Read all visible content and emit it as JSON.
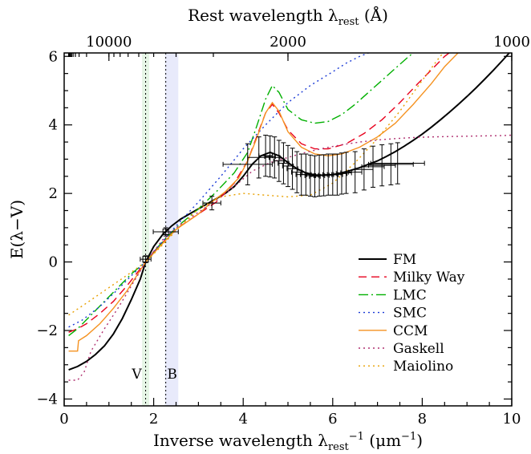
{
  "chart_data": {
    "type": "line",
    "xlabel": "Inverse wavelength λrest⁻¹ (μm⁻¹)",
    "xlabel_parts": {
      "main": "Inverse wavelength λ",
      "sub": "rest",
      "sup": "−1",
      "unit": " (μm",
      "unit_sup": "−1",
      "close": ")"
    },
    "ylabel": "E(λ−V)",
    "top_xlabel": "Rest wavelength λrest (Å)",
    "top_xlabel_parts": {
      "main": "Rest wavelength λ",
      "sub": "rest",
      "unit": " (Å)"
    },
    "xlim": [
      0,
      10
    ],
    "ylim": [
      -4.2,
      6.1
    ],
    "xticks": [
      0,
      2,
      4,
      6,
      8,
      10
    ],
    "yticks": [
      -4,
      -2,
      0,
      2,
      4,
      6
    ],
    "top_ticks": [
      {
        "label": "10000",
        "inv_x": 1.0
      },
      {
        "label": "2000",
        "inv_x": 5.0
      },
      {
        "label": "1000",
        "inv_x": 10.0
      }
    ],
    "bands": [
      {
        "label": "V",
        "x": 1.82,
        "range": [
          1.74,
          1.9
        ],
        "color": "#e6f6e6"
      },
      {
        "label": "B",
        "x": 2.27,
        "range": [
          2.25,
          2.55
        ],
        "color": "#e8eafb"
      }
    ],
    "legend_position": "bottom-right",
    "series": [
      {
        "name": "FM",
        "color": "#000000",
        "dash": "solid",
        "x": [
          0.1,
          0.3,
          0.5,
          0.7,
          0.9,
          1.1,
          1.3,
          1.5,
          1.7,
          1.82,
          2.0,
          2.2,
          2.4,
          2.6,
          2.8,
          3.0,
          3.2,
          3.4,
          3.6,
          3.8,
          4.0,
          4.2,
          4.4,
          4.6,
          4.8,
          5.0,
          5.2,
          5.4,
          5.6,
          5.8,
          6.0,
          6.2,
          6.4,
          6.6,
          6.8,
          7.0,
          7.2,
          7.4,
          7.6,
          7.8,
          8.0,
          8.2,
          8.4,
          8.6,
          8.8,
          9.0,
          9.2,
          9.4,
          9.6,
          9.8,
          10.0
        ],
        "y": [
          -3.15,
          -3.05,
          -2.9,
          -2.7,
          -2.45,
          -2.1,
          -1.65,
          -1.1,
          -0.5,
          0.0,
          0.45,
          0.8,
          1.05,
          1.25,
          1.4,
          1.55,
          1.7,
          1.85,
          2.0,
          2.2,
          2.5,
          2.85,
          3.1,
          3.2,
          3.1,
          2.9,
          2.72,
          2.6,
          2.54,
          2.53,
          2.55,
          2.6,
          2.67,
          2.75,
          2.85,
          2.95,
          3.08,
          3.22,
          3.38,
          3.55,
          3.73,
          3.93,
          4.14,
          4.36,
          4.59,
          4.83,
          5.08,
          5.34,
          5.61,
          5.89,
          6.18
        ]
      },
      {
        "name": "Milky Way",
        "color": "#e8001c",
        "dash": "10,6",
        "x": [
          0.1,
          0.3,
          0.5,
          0.8,
          1.1,
          1.4,
          1.7,
          1.82,
          2.0,
          2.3,
          2.6,
          3.0,
          3.4,
          3.8,
          4.1,
          4.3,
          4.5,
          4.65,
          4.8,
          5.0,
          5.3,
          5.6,
          5.9,
          6.3,
          6.7,
          7.1,
          7.5,
          7.9,
          8.2,
          8.5,
          8.7
        ],
        "y": [
          -2.05,
          -1.95,
          -1.8,
          -1.5,
          -1.15,
          -0.7,
          -0.2,
          0.0,
          0.3,
          0.7,
          1.05,
          1.4,
          1.75,
          2.3,
          2.95,
          3.65,
          4.35,
          4.6,
          4.35,
          3.85,
          3.45,
          3.3,
          3.3,
          3.45,
          3.75,
          4.15,
          4.65,
          5.2,
          5.6,
          6.0,
          6.2
        ]
      },
      {
        "name": "LMC",
        "color": "#00b000",
        "dash": "12,4,2,4",
        "x": [
          0.1,
          0.3,
          0.6,
          0.9,
          1.2,
          1.5,
          1.82,
          2.1,
          2.5,
          3.0,
          3.4,
          3.8,
          4.1,
          4.3,
          4.5,
          4.65,
          4.8,
          5.0,
          5.3,
          5.6,
          5.9,
          6.2,
          6.5,
          6.8,
          7.1,
          7.4,
          7.7,
          7.9
        ],
        "y": [
          -2.15,
          -1.95,
          -1.55,
          -1.15,
          -0.75,
          -0.35,
          0.0,
          0.45,
          1.0,
          1.55,
          2.05,
          2.6,
          3.2,
          3.95,
          4.75,
          5.15,
          4.95,
          4.45,
          4.15,
          4.05,
          4.1,
          4.3,
          4.6,
          4.95,
          5.3,
          5.65,
          6.0,
          6.2
        ]
      },
      {
        "name": "SMC",
        "color": "#1a3ad6",
        "dash": "2,4",
        "x": [
          0.1,
          0.4,
          0.8,
          1.2,
          1.5,
          1.82,
          2.1,
          2.5,
          3.0,
          3.5,
          4.0,
          4.5,
          5.0,
          5.5,
          6.0,
          6.3,
          6.6,
          6.8,
          7.0,
          7.2
        ],
        "y": [
          -1.9,
          -1.7,
          -1.3,
          -0.8,
          -0.4,
          0.0,
          0.45,
          1.05,
          1.75,
          2.5,
          3.3,
          4.0,
          4.65,
          5.15,
          5.55,
          5.8,
          6.0,
          6.1,
          6.2,
          6.3
        ]
      },
      {
        "name": "CCM",
        "color": "#f59220",
        "dash": "solid",
        "x": [
          0.1,
          0.3,
          0.32,
          0.5,
          0.8,
          1.1,
          1.4,
          1.82,
          2.1,
          2.5,
          3.0,
          3.3,
          3.6,
          3.9,
          4.1,
          4.3,
          4.5,
          4.65,
          4.8,
          5.0,
          5.3,
          5.6,
          5.9,
          6.2,
          6.6,
          7.0,
          7.4,
          7.8,
          8.2,
          8.5,
          8.8
        ],
        "y": [
          -2.6,
          -2.6,
          -2.3,
          -2.15,
          -1.8,
          -1.35,
          -0.85,
          0.0,
          0.4,
          0.95,
          1.4,
          1.75,
          2.05,
          2.45,
          2.95,
          3.6,
          4.35,
          4.65,
          4.4,
          3.8,
          3.35,
          3.15,
          3.1,
          3.15,
          3.35,
          3.65,
          4.05,
          4.6,
          5.2,
          5.7,
          6.1
        ]
      },
      {
        "name": "Gaskell",
        "color": "#b03070",
        "dash": "2,4",
        "x": [
          0.1,
          0.3,
          0.45,
          0.6,
          0.9,
          1.2,
          1.5,
          1.82,
          2.2,
          2.6,
          3.0,
          3.4,
          3.8,
          4.2,
          4.6,
          5.0,
          5.4,
          5.8,
          6.2,
          6.6,
          7.0,
          7.4,
          7.8,
          8.2,
          8.6,
          9.0,
          9.4,
          9.8,
          10.0
        ],
        "y": [
          -3.45,
          -3.45,
          -3.2,
          -2.6,
          -1.95,
          -1.35,
          -0.7,
          0.0,
          0.65,
          1.1,
          1.45,
          1.8,
          2.2,
          2.65,
          2.9,
          3.05,
          3.2,
          3.32,
          3.42,
          3.5,
          3.56,
          3.6,
          3.63,
          3.65,
          3.66,
          3.67,
          3.68,
          3.69,
          3.7
        ]
      },
      {
        "name": "Maiolino",
        "color": "#e8a000",
        "dash": "2,4",
        "x": [
          0.1,
          0.5,
          1.0,
          1.5,
          1.82,
          2.2,
          2.6,
          3.0,
          3.5,
          4.0,
          4.5,
          5.0,
          5.5,
          6.0,
          6.5,
          7.0,
          7.5,
          8.0,
          8.4,
          8.7
        ],
        "y": [
          -1.55,
          -1.2,
          -0.75,
          -0.3,
          0.0,
          0.5,
          1.05,
          1.55,
          1.9,
          2.0,
          1.95,
          1.9,
          1.95,
          2.3,
          2.9,
          3.6,
          4.4,
          5.3,
          6.0,
          6.4
        ]
      }
    ],
    "observations": {
      "x": [
        1.82,
        2.27,
        3.3,
        4.1,
        4.35,
        4.5,
        4.6,
        4.7,
        4.8,
        4.9,
        5.0,
        5.1,
        5.2,
        5.3,
        5.4,
        5.5,
        5.6,
        5.7,
        5.8,
        5.9,
        6.0,
        6.1,
        6.2,
        6.3,
        6.5,
        6.7,
        6.9,
        7.1,
        7.3,
        7.45
      ],
      "y": [
        0.08,
        0.88,
        1.72,
        2.85,
        3.05,
        3.1,
        3.08,
        3.05,
        2.95,
        2.88,
        2.8,
        2.72,
        2.62,
        2.55,
        2.55,
        2.52,
        2.5,
        2.52,
        2.53,
        2.55,
        2.55,
        2.55,
        2.58,
        2.6,
        2.62,
        2.7,
        2.78,
        2.82,
        2.85,
        2.88
      ],
      "yerr": [
        0.1,
        0.12,
        0.2,
        0.6,
        0.6,
        0.6,
        0.6,
        0.6,
        0.6,
        0.6,
        0.6,
        0.6,
        0.6,
        0.6,
        0.6,
        0.6,
        0.6,
        0.6,
        0.6,
        0.6,
        0.6,
        0.6,
        0.6,
        0.6,
        0.6,
        0.6,
        0.6,
        0.6,
        0.6,
        0.6
      ],
      "xerr": [
        0.12,
        0.28,
        0.2,
        0.55,
        0.25,
        0.15,
        0.12,
        0.12,
        0.12,
        0.12,
        0.12,
        0.12,
        0.12,
        0.12,
        0.12,
        0.12,
        0.12,
        0.12,
        0.12,
        0.12,
        0.12,
        0.12,
        0.12,
        0.12,
        0.15,
        0.2,
        0.25,
        0.3,
        0.5,
        0.6
      ]
    }
  }
}
